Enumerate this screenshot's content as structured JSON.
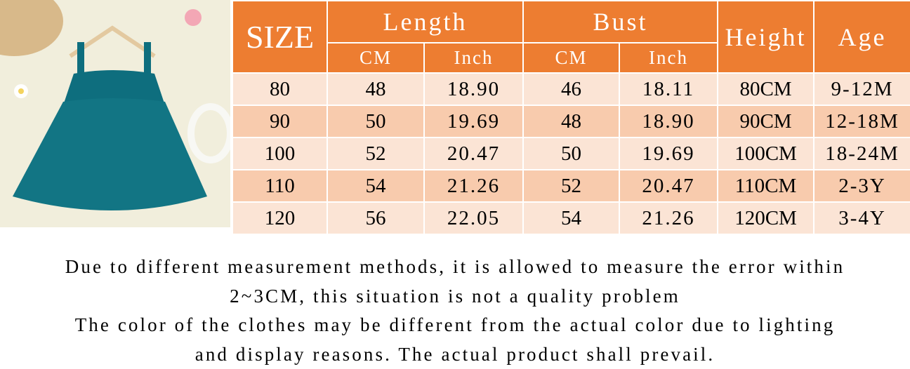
{
  "product_image": {
    "alt": "teal tulle baby dress on hanger",
    "dress_color": "#0E6E7E"
  },
  "table": {
    "headers": {
      "size": "SIZE",
      "length": "Length",
      "bust": "Bust",
      "height": "Height",
      "age": "Age",
      "cm": "CM",
      "inch": "Inch"
    },
    "rows": [
      [
        "80",
        "48",
        "18.90",
        "46",
        "18.11",
        "80CM",
        "9-12M"
      ],
      [
        "90",
        "50",
        "19.69",
        "48",
        "18.90",
        "90CM",
        "12-18M"
      ],
      [
        "100",
        "52",
        "20.47",
        "50",
        "19.69",
        "100CM",
        "18-24M"
      ],
      [
        "110",
        "54",
        "21.26",
        "52",
        "20.47",
        "110CM",
        "2-3Y"
      ],
      [
        "120",
        "56",
        "22.05",
        "54",
        "21.26",
        "120CM",
        "3-4Y"
      ]
    ],
    "colors": {
      "header": "#ED7D31",
      "row_light": "#FBE4D5",
      "row_dark": "#F8CBAD"
    }
  },
  "notes": [
    "Due to different measurement methods, it is allowed to measure the error within",
    "2~3CM, this situation is not a quality problem",
    "The color of the clothes may be different from the actual color due to lighting",
    "and display reasons. The actual product shall prevail."
  ]
}
